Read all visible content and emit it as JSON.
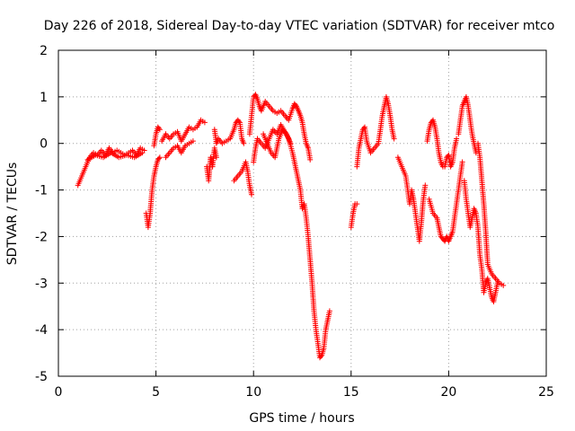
{
  "chart_data": {
    "type": "scatter",
    "title": "Day 226 of 2018, Sidereal Day-to-day VTEC variation (SDTVAR) for receiver mtco",
    "xlabel": "GPS time / hours",
    "ylabel": "SDTVAR / TECUs",
    "xlim": [
      0,
      25
    ],
    "ylim": [
      -5,
      2
    ],
    "xticks": [
      0,
      5,
      10,
      15,
      20,
      25
    ],
    "yticks": [
      -5,
      -4,
      -3,
      -2,
      -1,
      0,
      1,
      2
    ],
    "xtick_labels": [
      "0",
      "5",
      "10",
      "15",
      "20",
      "25"
    ],
    "ytick_labels": [
      "-5",
      "-4",
      "-3",
      "-2",
      "-1",
      "0",
      "1",
      "2"
    ],
    "grid": true,
    "marker": "+",
    "color": "#ff0000",
    "series": [
      {
        "name": "mtco SDTVAR",
        "segments": [
          [
            [
              1.0,
              -0.9
            ],
            [
              1.2,
              -0.7
            ],
            [
              1.4,
              -0.5
            ],
            [
              1.6,
              -0.3
            ],
            [
              1.8,
              -0.2
            ],
            [
              2.0,
              -0.25
            ],
            [
              2.2,
              -0.15
            ],
            [
              2.4,
              -0.25
            ],
            [
              2.6,
              -0.1
            ],
            [
              2.8,
              -0.2
            ],
            [
              3.0,
              -0.15
            ],
            [
              3.2,
              -0.2
            ],
            [
              3.4,
              -0.25
            ],
            [
              3.6,
              -0.2
            ],
            [
              3.8,
              -0.15
            ],
            [
              4.0,
              -0.25
            ],
            [
              4.2,
              -0.1
            ],
            [
              4.4,
              -0.15
            ]
          ],
          [
            [
              1.5,
              -0.35
            ],
            [
              1.9,
              -0.25
            ],
            [
              2.3,
              -0.3
            ],
            [
              2.7,
              -0.2
            ],
            [
              3.1,
              -0.3
            ],
            [
              3.5,
              -0.25
            ],
            [
              3.9,
              -0.3
            ],
            [
              4.3,
              -0.2
            ]
          ],
          [
            [
              4.5,
              -1.5
            ],
            [
              4.6,
              -1.8
            ],
            [
              4.7,
              -1.5
            ],
            [
              4.8,
              -1.0
            ],
            [
              4.9,
              -0.7
            ],
            [
              5.0,
              -0.5
            ],
            [
              5.1,
              -0.35
            ],
            [
              5.2,
              -0.3
            ]
          ],
          [
            [
              4.9,
              -0.05
            ],
            [
              5.0,
              0.2
            ],
            [
              5.1,
              0.35
            ],
            [
              5.2,
              0.3
            ]
          ],
          [
            [
              5.3,
              0.05
            ],
            [
              5.5,
              0.2
            ],
            [
              5.7,
              0.1
            ],
            [
              5.9,
              0.2
            ],
            [
              6.1,
              0.25
            ],
            [
              6.3,
              0.05
            ],
            [
              6.5,
              0.2
            ],
            [
              6.7,
              0.35
            ],
            [
              6.9,
              0.3
            ],
            [
              7.1,
              0.35
            ],
            [
              7.3,
              0.5
            ],
            [
              7.5,
              0.45
            ]
          ],
          [
            [
              5.5,
              -0.3
            ],
            [
              5.7,
              -0.2
            ],
            [
              5.9,
              -0.1
            ],
            [
              6.1,
              -0.05
            ],
            [
              6.3,
              -0.2
            ],
            [
              6.5,
              -0.05
            ],
            [
              6.7,
              0.0
            ],
            [
              6.9,
              0.05
            ]
          ],
          [
            [
              7.6,
              -0.5
            ],
            [
              7.7,
              -0.8
            ],
            [
              7.8,
              -0.3
            ],
            [
              7.9,
              -0.5
            ],
            [
              8.0,
              -0.1
            ],
            [
              8.1,
              -0.3
            ]
          ],
          [
            [
              8.0,
              0.3
            ],
            [
              8.1,
              0.0
            ],
            [
              8.2,
              0.1
            ],
            [
              8.4,
              0.0
            ],
            [
              8.6,
              0.05
            ],
            [
              8.8,
              0.1
            ],
            [
              9.0,
              0.3
            ],
            [
              9.1,
              0.45
            ],
            [
              9.2,
              0.5
            ],
            [
              9.3,
              0.45
            ],
            [
              9.4,
              0.1
            ],
            [
              9.5,
              0.0
            ]
          ],
          [
            [
              9.0,
              -0.8
            ],
            [
              9.2,
              -0.7
            ],
            [
              9.4,
              -0.6
            ],
            [
              9.6,
              -0.4
            ],
            [
              9.7,
              -0.6
            ],
            [
              9.8,
              -0.9
            ],
            [
              9.9,
              -1.1
            ]
          ],
          [
            [
              9.8,
              0.2
            ],
            [
              9.9,
              0.6
            ],
            [
              10.0,
              1.0
            ],
            [
              10.1,
              1.05
            ],
            [
              10.2,
              0.95
            ],
            [
              10.3,
              0.8
            ],
            [
              10.4,
              0.7
            ],
            [
              10.6,
              0.9
            ],
            [
              10.8,
              0.8
            ],
            [
              11.0,
              0.7
            ],
            [
              11.2,
              0.65
            ],
            [
              11.4,
              0.7
            ],
            [
              11.6,
              0.6
            ],
            [
              11.8,
              0.5
            ],
            [
              12.0,
              0.75
            ],
            [
              12.1,
              0.85
            ],
            [
              12.2,
              0.8
            ],
            [
              12.3,
              0.7
            ],
            [
              12.4,
              0.6
            ],
            [
              12.5,
              0.45
            ],
            [
              12.6,
              0.2
            ],
            [
              12.7,
              0.0
            ],
            [
              12.8,
              -0.1
            ],
            [
              12.9,
              -0.35
            ]
          ],
          [
            [
              10.0,
              -0.4
            ],
            [
              10.1,
              -0.1
            ],
            [
              10.2,
              0.1
            ],
            [
              10.4,
              0.0
            ],
            [
              10.6,
              -0.1
            ],
            [
              10.8,
              0.1
            ],
            [
              11.0,
              0.3
            ],
            [
              11.2,
              0.2
            ],
            [
              11.4,
              0.4
            ],
            [
              11.6,
              0.25
            ],
            [
              11.8,
              0.1
            ],
            [
              12.0,
              -0.2
            ],
            [
              12.1,
              -0.4
            ],
            [
              12.2,
              -0.6
            ],
            [
              12.3,
              -0.8
            ],
            [
              12.4,
              -1.0
            ],
            [
              12.5,
              -1.4
            ],
            [
              12.6,
              -1.3
            ],
            [
              12.7,
              -1.6
            ],
            [
              12.8,
              -2.0
            ],
            [
              12.9,
              -2.5
            ],
            [
              13.0,
              -3.0
            ],
            [
              13.1,
              -3.6
            ],
            [
              13.2,
              -4.0
            ],
            [
              13.3,
              -4.3
            ],
            [
              13.4,
              -4.6
            ],
            [
              13.5,
              -4.55
            ],
            [
              13.6,
              -4.4
            ],
            [
              13.7,
              -4.0
            ],
            [
              13.8,
              -3.8
            ],
            [
              13.9,
              -3.6
            ]
          ],
          [
            [
              10.5,
              0.2
            ],
            [
              10.7,
              0.0
            ],
            [
              10.9,
              -0.2
            ],
            [
              11.1,
              -0.3
            ],
            [
              11.3,
              0.1
            ],
            [
              11.5,
              0.3
            ],
            [
              11.7,
              0.2
            ],
            [
              11.9,
              0.0
            ]
          ],
          [
            [
              15.0,
              -1.8
            ],
            [
              15.1,
              -1.5
            ],
            [
              15.2,
              -1.3
            ],
            [
              15.3,
              -1.3
            ]
          ],
          [
            [
              15.3,
              -0.5
            ],
            [
              15.4,
              -0.1
            ],
            [
              15.5,
              0.1
            ],
            [
              15.6,
              0.3
            ],
            [
              15.7,
              0.35
            ],
            [
              15.8,
              0.05
            ],
            [
              16.0,
              -0.2
            ],
            [
              16.2,
              -0.1
            ],
            [
              16.4,
              0.0
            ],
            [
              16.5,
              0.3
            ],
            [
              16.6,
              0.6
            ],
            [
              16.7,
              0.8
            ],
            [
              16.8,
              1.0
            ],
            [
              16.9,
              0.85
            ],
            [
              17.0,
              0.6
            ],
            [
              17.1,
              0.3
            ],
            [
              17.2,
              0.1
            ]
          ],
          [
            [
              17.4,
              -0.3
            ],
            [
              17.6,
              -0.5
            ],
            [
              17.8,
              -0.7
            ],
            [
              17.9,
              -1.0
            ],
            [
              18.0,
              -1.3
            ],
            [
              18.1,
              -1.0
            ],
            [
              18.2,
              -1.2
            ],
            [
              18.3,
              -1.5
            ],
            [
              18.4,
              -1.8
            ],
            [
              18.5,
              -2.1
            ],
            [
              18.6,
              -1.7
            ],
            [
              18.7,
              -1.2
            ],
            [
              18.8,
              -0.9
            ]
          ],
          [
            [
              18.9,
              0.05
            ],
            [
              19.0,
              0.3
            ],
            [
              19.1,
              0.45
            ],
            [
              19.2,
              0.5
            ],
            [
              19.3,
              0.35
            ],
            [
              19.4,
              0.1
            ],
            [
              19.5,
              -0.2
            ],
            [
              19.6,
              -0.4
            ],
            [
              19.7,
              -0.5
            ],
            [
              19.8,
              -0.5
            ],
            [
              19.9,
              -0.3
            ],
            [
              20.0,
              -0.25
            ],
            [
              20.1,
              -0.5
            ],
            [
              20.2,
              -0.4
            ],
            [
              20.3,
              -0.1
            ],
            [
              20.4,
              0.1
            ]
          ],
          [
            [
              19.0,
              -1.2
            ],
            [
              19.2,
              -1.5
            ],
            [
              19.4,
              -1.6
            ],
            [
              19.5,
              -1.8
            ],
            [
              19.6,
              -2.0
            ],
            [
              19.7,
              -2.05
            ],
            [
              19.8,
              -2.1
            ],
            [
              19.9,
              -2.0
            ],
            [
              20.0,
              -2.1
            ],
            [
              20.1,
              -2.0
            ],
            [
              20.2,
              -1.9
            ],
            [
              20.3,
              -1.6
            ],
            [
              20.4,
              -1.3
            ],
            [
              20.5,
              -1.0
            ],
            [
              20.6,
              -0.7
            ],
            [
              20.7,
              -0.4
            ]
          ],
          [
            [
              20.5,
              0.2
            ],
            [
              20.6,
              0.5
            ],
            [
              20.7,
              0.8
            ],
            [
              20.8,
              0.9
            ],
            [
              20.9,
              1.0
            ],
            [
              21.0,
              0.8
            ],
            [
              21.1,
              0.5
            ],
            [
              21.2,
              0.2
            ],
            [
              21.3,
              0.0
            ],
            [
              21.4,
              -0.2
            ]
          ],
          [
            [
              20.8,
              -0.8
            ],
            [
              20.9,
              -1.2
            ],
            [
              21.0,
              -1.5
            ],
            [
              21.1,
              -1.8
            ],
            [
              21.2,
              -1.6
            ],
            [
              21.3,
              -1.4
            ],
            [
              21.4,
              -1.5
            ],
            [
              21.5,
              -1.8
            ],
            [
              21.6,
              -2.4
            ],
            [
              21.7,
              -2.7
            ],
            [
              21.8,
              -3.2
            ],
            [
              21.9,
              -3.0
            ],
            [
              22.0,
              -2.9
            ],
            [
              22.1,
              -3.1
            ],
            [
              22.2,
              -3.3
            ],
            [
              22.3,
              -3.4
            ],
            [
              22.4,
              -3.2
            ],
            [
              22.5,
              -3.0
            ]
          ],
          [
            [
              21.5,
              0.0
            ],
            [
              21.6,
              -0.3
            ],
            [
              21.7,
              -0.8
            ],
            [
              21.8,
              -1.3
            ],
            [
              21.9,
              -1.9
            ],
            [
              22.0,
              -2.6
            ],
            [
              22.2,
              -2.8
            ],
            [
              22.4,
              -2.9
            ],
            [
              22.6,
              -3.0
            ],
            [
              22.8,
              -3.05
            ]
          ]
        ]
      }
    ]
  }
}
